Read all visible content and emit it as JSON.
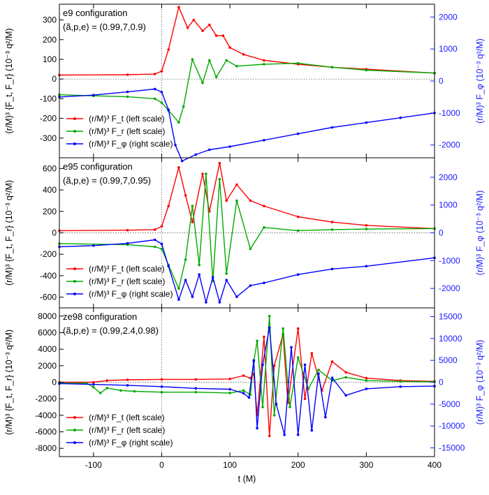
{
  "chart_data": [
    {
      "type": "line",
      "title": "e9 configuration",
      "subtitle": "(ã,p,e) = (0.99,7,0.9)",
      "xlabel": "t (M)",
      "xlim": [
        -150,
        400
      ],
      "xticks": [
        -100,
        0,
        100,
        200,
        300,
        400
      ],
      "ylabel": "(r/M)³ {F_t, F_r}  (10⁻³ q²/M)",
      "ylim": [
        -400,
        380
      ],
      "yticks": [
        -300,
        -200,
        -100,
        0,
        100,
        200,
        300
      ],
      "y2label": "(r/M)³ F_φ (10⁻³ q²/M)",
      "y2lim": [
        -2400,
        2400
      ],
      "y2ticks": [
        -2000,
        -1000,
        0,
        1000,
        2000
      ],
      "legend": [
        "(r/M)³ F_t (left scale)",
        "(r/M)³ F_r (left scale)",
        "(r/M)³ F_φ (right scale)"
      ],
      "series": [
        {
          "name": "(r/M)³ F_t (left scale)",
          "color": "#ff0000",
          "axis": "left",
          "x": [
            -150,
            -50,
            -10,
            0,
            10,
            25,
            38,
            47,
            60,
            70,
            80,
            90,
            100,
            120,
            150,
            200,
            250,
            300,
            400
          ],
          "y": [
            20,
            22,
            25,
            40,
            150,
            365,
            260,
            300,
            245,
            275,
            220,
            220,
            160,
            125,
            95,
            75,
            60,
            50,
            30
          ]
        },
        {
          "name": "(r/M)³ F_r (left scale)",
          "color": "#00aa00",
          "axis": "left",
          "x": [
            -150,
            -100,
            -50,
            -10,
            0,
            10,
            25,
            32,
            45,
            60,
            70,
            80,
            95,
            110,
            150,
            200,
            250,
            300,
            400
          ],
          "y": [
            -80,
            -85,
            -90,
            -100,
            -120,
            -160,
            -220,
            -140,
            100,
            -20,
            95,
            10,
            95,
            65,
            75,
            80,
            60,
            45,
            30
          ]
        },
        {
          "name": "(r/M)³ F_φ (right scale)",
          "color": "#0000ff",
          "axis": "right",
          "x": [
            -150,
            -100,
            -50,
            -10,
            0,
            10,
            20,
            30,
            50,
            70,
            100,
            150,
            200,
            250,
            300,
            350,
            400
          ],
          "y": [
            -500,
            -440,
            -340,
            -250,
            -350,
            -900,
            -2000,
            -2500,
            -2300,
            -2150,
            -2050,
            -1850,
            -1650,
            -1450,
            -1300,
            -1150,
            -1000
          ]
        }
      ]
    },
    {
      "type": "line",
      "title": "e95 configuration",
      "subtitle": "(ã,p,e) = (0.99,7,0.95)",
      "xlabel": "t (M)",
      "xlim": [
        -150,
        400
      ],
      "xticks": [
        -100,
        0,
        100,
        200,
        300,
        400
      ],
      "ylabel": "(r/M)³ {F_t, F_r}  (10⁻³ q²/M)",
      "ylim": [
        -700,
        700
      ],
      "yticks": [
        -600,
        -400,
        -200,
        0,
        200,
        400,
        600
      ],
      "y2label": "(r/M)³ F_φ (10⁻³ q²/M)",
      "y2lim": [
        -2700,
        2700
      ],
      "y2ticks": [
        -2000,
        -1000,
        0,
        1000,
        2000
      ],
      "legend": [
        "(r/M)³ F_t (left scale)",
        "(r/M)³ F_r (left scale)",
        "(r/M)³ F_φ (right scale)"
      ],
      "series": [
        {
          "name": "(r/M)³ F_t (left scale)",
          "color": "#ff0000",
          "axis": "left",
          "x": [
            -150,
            -50,
            -10,
            0,
            10,
            25,
            35,
            45,
            60,
            70,
            85,
            95,
            110,
            130,
            150,
            200,
            250,
            300,
            400
          ],
          "y": [
            20,
            25,
            30,
            60,
            250,
            610,
            350,
            100,
            550,
            200,
            650,
            300,
            450,
            300,
            250,
            150,
            100,
            70,
            40
          ]
        },
        {
          "name": "(r/M)³ F_r (left scale)",
          "color": "#00aa00",
          "axis": "left",
          "x": [
            -150,
            -50,
            -10,
            0,
            10,
            25,
            35,
            45,
            55,
            65,
            75,
            85,
            95,
            110,
            130,
            150,
            200,
            250,
            300,
            400
          ],
          "y": [
            -100,
            -110,
            -130,
            -150,
            -300,
            -520,
            -250,
            250,
            -300,
            550,
            -450,
            500,
            -380,
            300,
            -150,
            50,
            20,
            30,
            35,
            40
          ]
        },
        {
          "name": "(r/M)³ F_φ (right scale)",
          "color": "#0000ff",
          "axis": "right",
          "x": [
            -150,
            -100,
            -50,
            -10,
            0,
            10,
            25,
            35,
            45,
            55,
            65,
            75,
            85,
            95,
            110,
            130,
            150,
            200,
            250,
            300,
            400
          ],
          "y": [
            -500,
            -460,
            -380,
            -250,
            -400,
            -1200,
            -2400,
            -1700,
            -2300,
            -1500,
            -2500,
            -1600,
            -2500,
            -1700,
            -2300,
            -1900,
            -1800,
            -1500,
            -1300,
            -1200,
            -900
          ]
        }
      ]
    },
    {
      "type": "line",
      "title": "ze98 configuration",
      "subtitle": "(ã,p,e) = (0.99,2.4,0.98)",
      "xlabel": "t (M)",
      "xlim": [
        -150,
        400
      ],
      "xticks": [
        -100,
        0,
        100,
        200,
        300,
        400
      ],
      "ylabel": "(r/M)³ {F_t, F_r}  (10⁻³ q²/M)",
      "ylim": [
        -9000,
        9000
      ],
      "yticks": [
        -8000,
        -6000,
        -4000,
        -2000,
        0,
        2000,
        4000,
        6000,
        8000
      ],
      "y2label": "(r/M)³ F_φ (10⁻³ q²/M)",
      "y2lim": [
        -17000,
        17000
      ],
      "y2ticks": [
        -15000,
        -10000,
        -5000,
        0,
        5000,
        10000,
        15000
      ],
      "legend": [
        "(r/M)³ F_t (left scale)",
        "(r/M)³ F_r (left scale)",
        "(r/M)³ F_φ (right scale)"
      ],
      "series": [
        {
          "name": "(r/M)³ F_t (left scale)",
          "color": "#ff0000",
          "axis": "left",
          "x": [
            -150,
            -100,
            -80,
            -50,
            0,
            50,
            100,
            120,
            130,
            135,
            140,
            150,
            158,
            165,
            178,
            185,
            200,
            210,
            220,
            235,
            250,
            270,
            300,
            350,
            400
          ],
          "y": [
            0,
            0,
            200,
            300,
            350,
            350,
            400,
            800,
            500,
            1000,
            -4000,
            5500,
            -6500,
            2000,
            5800,
            -2500,
            6500,
            -2000,
            3500,
            -1000,
            2500,
            1200,
            500,
            200,
            100
          ]
        },
        {
          "name": "(r/M)³ F_r (left scale)",
          "color": "#00aa00",
          "axis": "left",
          "x": [
            -150,
            -110,
            -100,
            -90,
            -80,
            -60,
            -40,
            0,
            50,
            100,
            120,
            130,
            135,
            140,
            148,
            158,
            165,
            178,
            188,
            200,
            215,
            230,
            250,
            270,
            300,
            350,
            400
          ],
          "y": [
            -100,
            -120,
            -600,
            -1300,
            -700,
            -1000,
            -1100,
            -1200,
            -1200,
            -1300,
            -1000,
            -1500,
            2500,
            5000,
            -3000,
            8000,
            -4000,
            6500,
            -3000,
            3000,
            -800,
            1500,
            200,
            600,
            200,
            100,
            50
          ]
        },
        {
          "name": "(r/M)³ F_φ (right scale)",
          "color": "#0000ff",
          "axis": "right",
          "x": [
            -150,
            -100,
            -50,
            0,
            50,
            100,
            120,
            128,
            135,
            140,
            148,
            158,
            168,
            180,
            190,
            200,
            210,
            220,
            230,
            240,
            250,
            270,
            300,
            350,
            400
          ],
          "y": [
            -300,
            -500,
            -700,
            -1000,
            -1400,
            -1600,
            -2500,
            -3500,
            5000,
            -10500,
            4000,
            12500,
            -5000,
            -12000,
            8000,
            -12000,
            4000,
            -11000,
            2000,
            -8000,
            1000,
            -3000,
            -1500,
            -1000,
            -900
          ]
        }
      ]
    }
  ]
}
